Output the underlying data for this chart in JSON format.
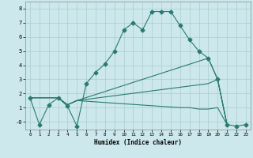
{
  "xlabel": "Humidex (Indice chaleur)",
  "ylabel": "",
  "bg_color": "#cce8ec",
  "grid_color": "#aacccc",
  "line_color": "#2a7a72",
  "xlim": [
    -0.5,
    23.5
  ],
  "ylim": [
    -0.55,
    8.5
  ],
  "xticks": [
    0,
    1,
    2,
    3,
    4,
    5,
    6,
    7,
    8,
    9,
    10,
    11,
    12,
    13,
    14,
    15,
    16,
    17,
    18,
    19,
    20,
    21,
    22,
    23
  ],
  "yticks": [
    0,
    1,
    2,
    3,
    4,
    5,
    6,
    7,
    8
  ],
  "ytick_labels": [
    "-0",
    "1",
    "2",
    "3",
    "4",
    "5",
    "6",
    "7",
    "8"
  ],
  "lines": [
    {
      "x": [
        0,
        1,
        2,
        3,
        4,
        5,
        6,
        7,
        8,
        9,
        10,
        11,
        12,
        13,
        14,
        15,
        16,
        17,
        18,
        19,
        20,
        21,
        22,
        23
      ],
      "y": [
        1.7,
        -0.2,
        1.2,
        1.7,
        1.1,
        -0.3,
        2.7,
        3.5,
        4.1,
        5.0,
        6.5,
        7.0,
        6.5,
        7.8,
        7.8,
        7.8,
        6.8,
        5.8,
        5.0,
        4.5,
        3.0,
        -0.2,
        -0.3,
        -0.2
      ],
      "marker": "D",
      "markersize": 2.5
    },
    {
      "x": [
        0,
        3,
        4,
        5,
        19,
        20,
        21
      ],
      "y": [
        1.7,
        1.7,
        1.2,
        1.5,
        4.5,
        3.0,
        -0.2
      ],
      "marker": null,
      "markersize": 0
    },
    {
      "x": [
        0,
        3,
        4,
        5,
        19,
        20,
        21
      ],
      "y": [
        1.7,
        1.7,
        1.2,
        1.5,
        2.7,
        3.0,
        -0.2
      ],
      "marker": null,
      "markersize": 0
    },
    {
      "x": [
        0,
        3,
        4,
        5,
        16,
        17,
        18,
        19,
        20,
        21
      ],
      "y": [
        1.7,
        1.7,
        1.2,
        1.5,
        1.0,
        1.0,
        0.9,
        0.9,
        1.0,
        -0.2
      ],
      "marker": null,
      "markersize": 0
    }
  ]
}
